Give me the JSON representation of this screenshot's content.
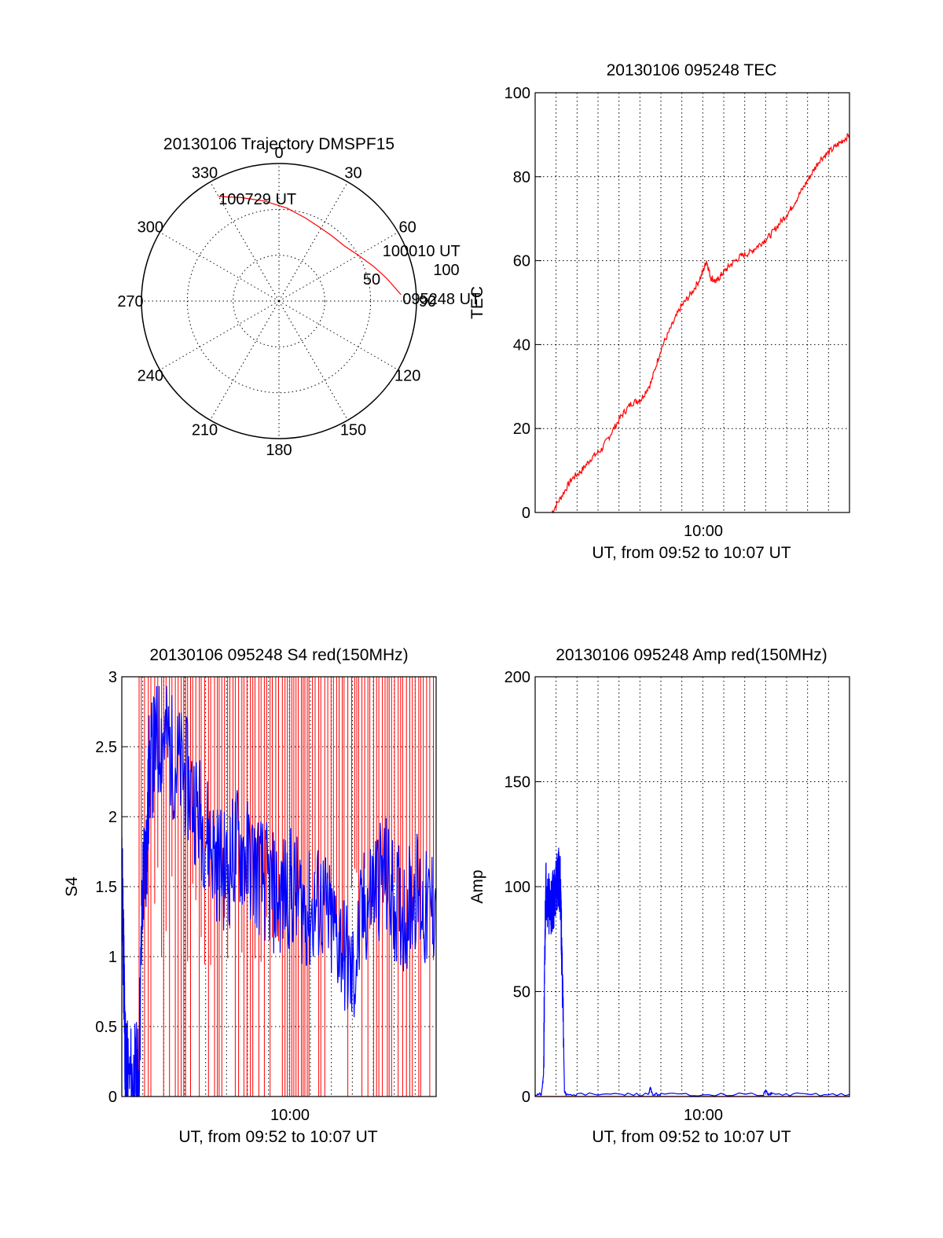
{
  "chart_data": [
    {
      "type": "polar",
      "title": "20130106 Trajectory DMSPF15",
      "angle_labels": [
        "0",
        "30",
        "60",
        "90",
        "120",
        "150",
        "180",
        "210",
        "240",
        "270",
        "300",
        "330"
      ],
      "radial_labels": [
        "50",
        "100"
      ],
      "trajectory": {
        "color": "#ff0000",
        "points": [
          {
            "az": 87,
            "r": 80
          },
          {
            "az": 78,
            "r": 72
          },
          {
            "az": 70,
            "r": 66
          },
          {
            "az": 60,
            "r": 60
          },
          {
            "az": 50,
            "r": 56
          },
          {
            "az": 40,
            "r": 55
          },
          {
            "az": 30,
            "r": 55
          },
          {
            "az": 18,
            "r": 57
          },
          {
            "az": 5,
            "r": 61
          },
          {
            "az": -8,
            "r": 66
          },
          {
            "az": -20,
            "r": 72
          },
          {
            "az": -30,
            "r": 79
          }
        ]
      },
      "annotations": [
        {
          "text": "100729 UT",
          "az": -30,
          "r": 79
        },
        {
          "text": "100010 UT",
          "az": 52,
          "r": 56
        },
        {
          "text": "095248 UT",
          "az": 87,
          "r": 80
        }
      ]
    },
    {
      "type": "line",
      "title": "20130106 095248 TEC",
      "ylabel": "TEC",
      "xlabel": "UT, from 09:52 to 10:07 UT",
      "xtick_labels": [
        "10:00"
      ],
      "ylim": [
        0,
        100
      ],
      "yticks": [
        "0",
        "20",
        "40",
        "60",
        "80",
        "100"
      ],
      "series": [
        {
          "color": "#ff0000",
          "x": [
            0.0,
            0.5,
            1.0,
            1.5,
            2.0,
            2.5,
            3.0,
            3.5,
            4.0,
            4.5,
            5.0,
            5.5,
            6.0,
            6.5,
            7.0,
            7.5,
            7.8,
            8.0,
            8.3,
            8.6,
            9.0,
            9.5,
            10.0,
            10.5,
            11.0,
            11.5,
            12.0,
            12.5,
            13.0,
            13.5,
            14.0,
            14.5,
            15.0
          ],
          "y": [
            0,
            4,
            8,
            10,
            13,
            15,
            19,
            23,
            26,
            27,
            31,
            39,
            44,
            49,
            52,
            56,
            60,
            56,
            55,
            57,
            59,
            61,
            62,
            64,
            66,
            69,
            72,
            76,
            80,
            84,
            86,
            88,
            90
          ]
        }
      ]
    },
    {
      "type": "line",
      "title": "20130106 095248 S4 red(150MHz)",
      "ylabel": "S4",
      "xlabel": "UT, from 09:52 to 10:07 UT",
      "xtick_labels": [
        "10:00"
      ],
      "ylim": [
        0,
        3
      ],
      "yticks": [
        "0",
        "0.5",
        "1",
        "1.5",
        "2",
        "2.5",
        "3"
      ],
      "series": [
        {
          "name": "",
          "color": "#ff0000",
          "note_type": "dense-spikes"
        },
        {
          "color": "#0000ff",
          "x": [
            0.0,
            0.05,
            0.1,
            0.15,
            0.2,
            0.3,
            0.6,
            0.8,
            1.0,
            1.2,
            1.3,
            1.6,
            2.0,
            2.5,
            3.0,
            3.5,
            4.0,
            4.5,
            5.0,
            5.5,
            6.0,
            6.5,
            7.0,
            7.5,
            8.0,
            8.5,
            9.0,
            9.5,
            10.0,
            10.5,
            11.0,
            11.5,
            12.0,
            12.5,
            13.0,
            13.5,
            14.0,
            14.5,
            15.0
          ],
          "y": [
            1.5,
            1.3,
            0.9,
            0.3,
            0.1,
            0.1,
            0.1,
            0.1,
            1.5,
            1.8,
            2.3,
            2.5,
            2.6,
            2.4,
            2.3,
            2.1,
            1.9,
            1.7,
            1.6,
            1.8,
            1.7,
            1.6,
            1.5,
            1.4,
            1.5,
            1.4,
            1.3,
            1.4,
            1.2,
            1.1,
            0.8,
            1.3,
            1.5,
            1.6,
            1.4,
            1.3,
            1.5,
            1.3,
            1.4
          ]
        }
      ]
    },
    {
      "type": "line",
      "title": "20130106 095248 Amp red(150MHz)",
      "ylabel": "Amp",
      "xlabel": "UT, from 09:52 to 10:07 UT",
      "xtick_labels": [
        "10:00"
      ],
      "ylim": [
        0,
        200
      ],
      "yticks": [
        "0",
        "50",
        "100",
        "150",
        "200"
      ],
      "series": [
        {
          "color": "#ff0000",
          "x": [
            0,
            15
          ],
          "y": [
            0,
            0
          ]
        },
        {
          "color": "#0000ff",
          "x": [
            0.0,
            0.3,
            0.4,
            0.5,
            0.7,
            0.9,
            1.1,
            1.2,
            1.3,
            1.4,
            1.5,
            2.0,
            4.0,
            5.4,
            5.5,
            5.6,
            6.0,
            8.0,
            10.9,
            11.0,
            11.1,
            11.3,
            13.0,
            15.0
          ],
          "y": [
            1,
            1,
            10,
            100,
            90,
            95,
            105,
            100,
            55,
            2,
            1,
            1,
            1,
            1,
            4,
            1,
            1,
            1,
            1,
            3,
            1,
            1,
            1,
            1
          ]
        }
      ]
    }
  ]
}
